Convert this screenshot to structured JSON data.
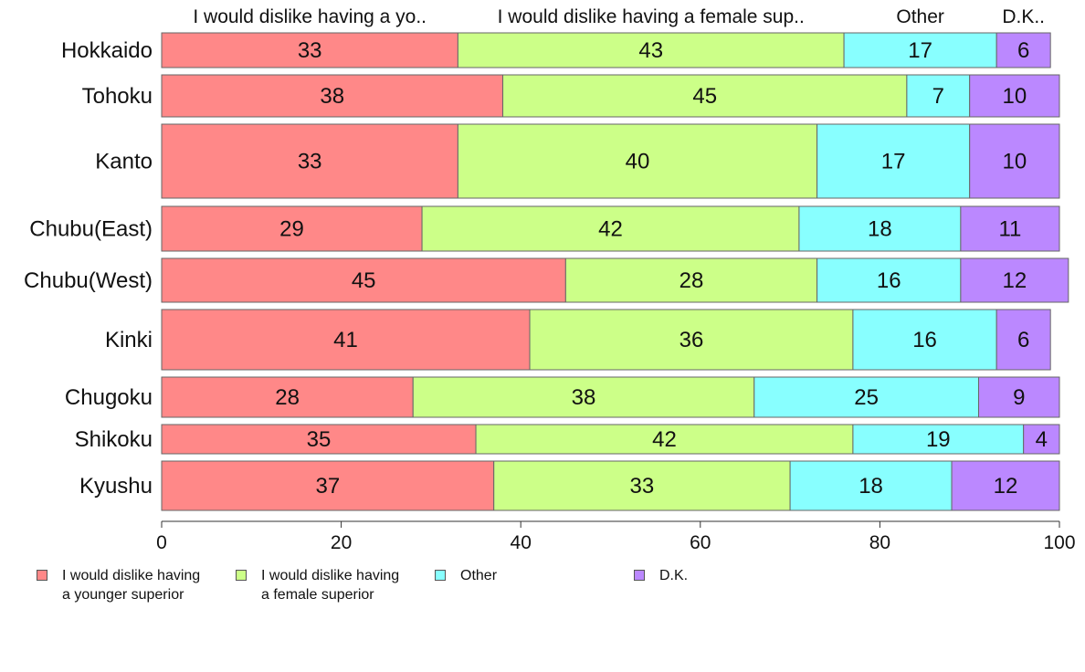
{
  "chart_data": {
    "type": "bar",
    "orientation": "horizontal",
    "stacked": true,
    "categories": [
      "Hokkaido",
      "Tohoku",
      "Kanto",
      "Chubu(East)",
      "Chubu(West)",
      "Kinki",
      "Chugoku",
      "Shikoku",
      "Kyushu"
    ],
    "series": [
      {
        "name": "I would dislike having a younger superior",
        "header": "I would dislike having a yo..",
        "color": "#ff8888",
        "values": [
          33,
          38,
          33,
          29,
          45,
          41,
          28,
          35,
          37
        ]
      },
      {
        "name": "I would dislike having a female superior",
        "header": "I would dislike having a female sup..",
        "color": "#ccff88",
        "values": [
          43,
          45,
          40,
          42,
          28,
          36,
          38,
          42,
          33
        ]
      },
      {
        "name": "Other",
        "header": "Other",
        "color": "#88ffff",
        "values": [
          17,
          7,
          17,
          18,
          16,
          16,
          25,
          19,
          18
        ]
      },
      {
        "name": "D.K.",
        "header": "D.K..",
        "color": "#bb88ff",
        "values": [
          6,
          10,
          10,
          11,
          12,
          6,
          9,
          4,
          12
        ]
      }
    ],
    "xlim": [
      0,
      100
    ],
    "xticks": [
      0,
      20,
      40,
      60,
      80,
      100
    ],
    "grid": false,
    "legend_position": "bottom"
  },
  "legend": {
    "items": [
      {
        "line1": "I would dislike having",
        "line2": "a younger superior"
      },
      {
        "line1": "I would dislike having",
        "line2": "a female superior"
      },
      {
        "line1": "Other",
        "line2": ""
      },
      {
        "line1": "D.K.",
        "line2": ""
      }
    ]
  }
}
